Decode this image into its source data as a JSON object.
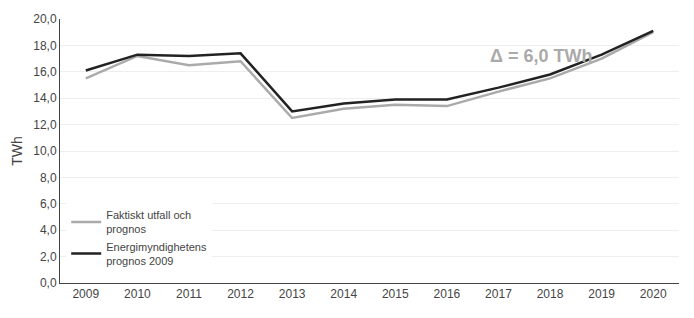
{
  "chart_data": {
    "type": "line",
    "ylabel": "TWh",
    "x": [
      2009,
      2010,
      2011,
      2012,
      2013,
      2014,
      2015,
      2016,
      2017,
      2018,
      2019,
      2020
    ],
    "series": [
      {
        "name": "Faktiskt utfall och\nprognos",
        "color": "#aaaaaa",
        "values": [
          15.5,
          17.2,
          16.5,
          16.8,
          12.5,
          13.2,
          13.5,
          13.4,
          14.5,
          15.5,
          17.0,
          19.0
        ]
      },
      {
        "name": "Energimyndighetens\nprognos 2009",
        "color": "#222222",
        "values": [
          16.1,
          17.3,
          17.2,
          17.4,
          13.0,
          13.6,
          13.9,
          13.9,
          14.8,
          15.8,
          17.3,
          19.1
        ]
      }
    ],
    "xlim": [
      2008.5,
      2020.5
    ],
    "xticks": [
      2009,
      2010,
      2011,
      2012,
      2013,
      2014,
      2015,
      2016,
      2017,
      2018,
      2019,
      2020
    ],
    "ylim": [
      0.0,
      20.0
    ],
    "yticks": [
      {
        "value": 0,
        "label": "0,0"
      },
      {
        "value": 2,
        "label": "2,0"
      },
      {
        "value": 4,
        "label": "4,0"
      },
      {
        "value": 6,
        "label": "6,0"
      },
      {
        "value": 8,
        "label": "8,0"
      },
      {
        "value": 10,
        "label": "10,0"
      },
      {
        "value": 12,
        "label": "12,0"
      },
      {
        "value": 14,
        "label": "14,0"
      },
      {
        "value": 16,
        "label": "16,0"
      },
      {
        "value": 18,
        "label": "18,0"
      },
      {
        "value": 20,
        "label": "20,0"
      }
    ],
    "grid": true,
    "legend": "lower left",
    "annotations": [
      {
        "text": "Δ = 6,0 TWh",
        "x": 2016.8,
        "y": 17.2,
        "color": "#aaaaaa"
      }
    ]
  }
}
